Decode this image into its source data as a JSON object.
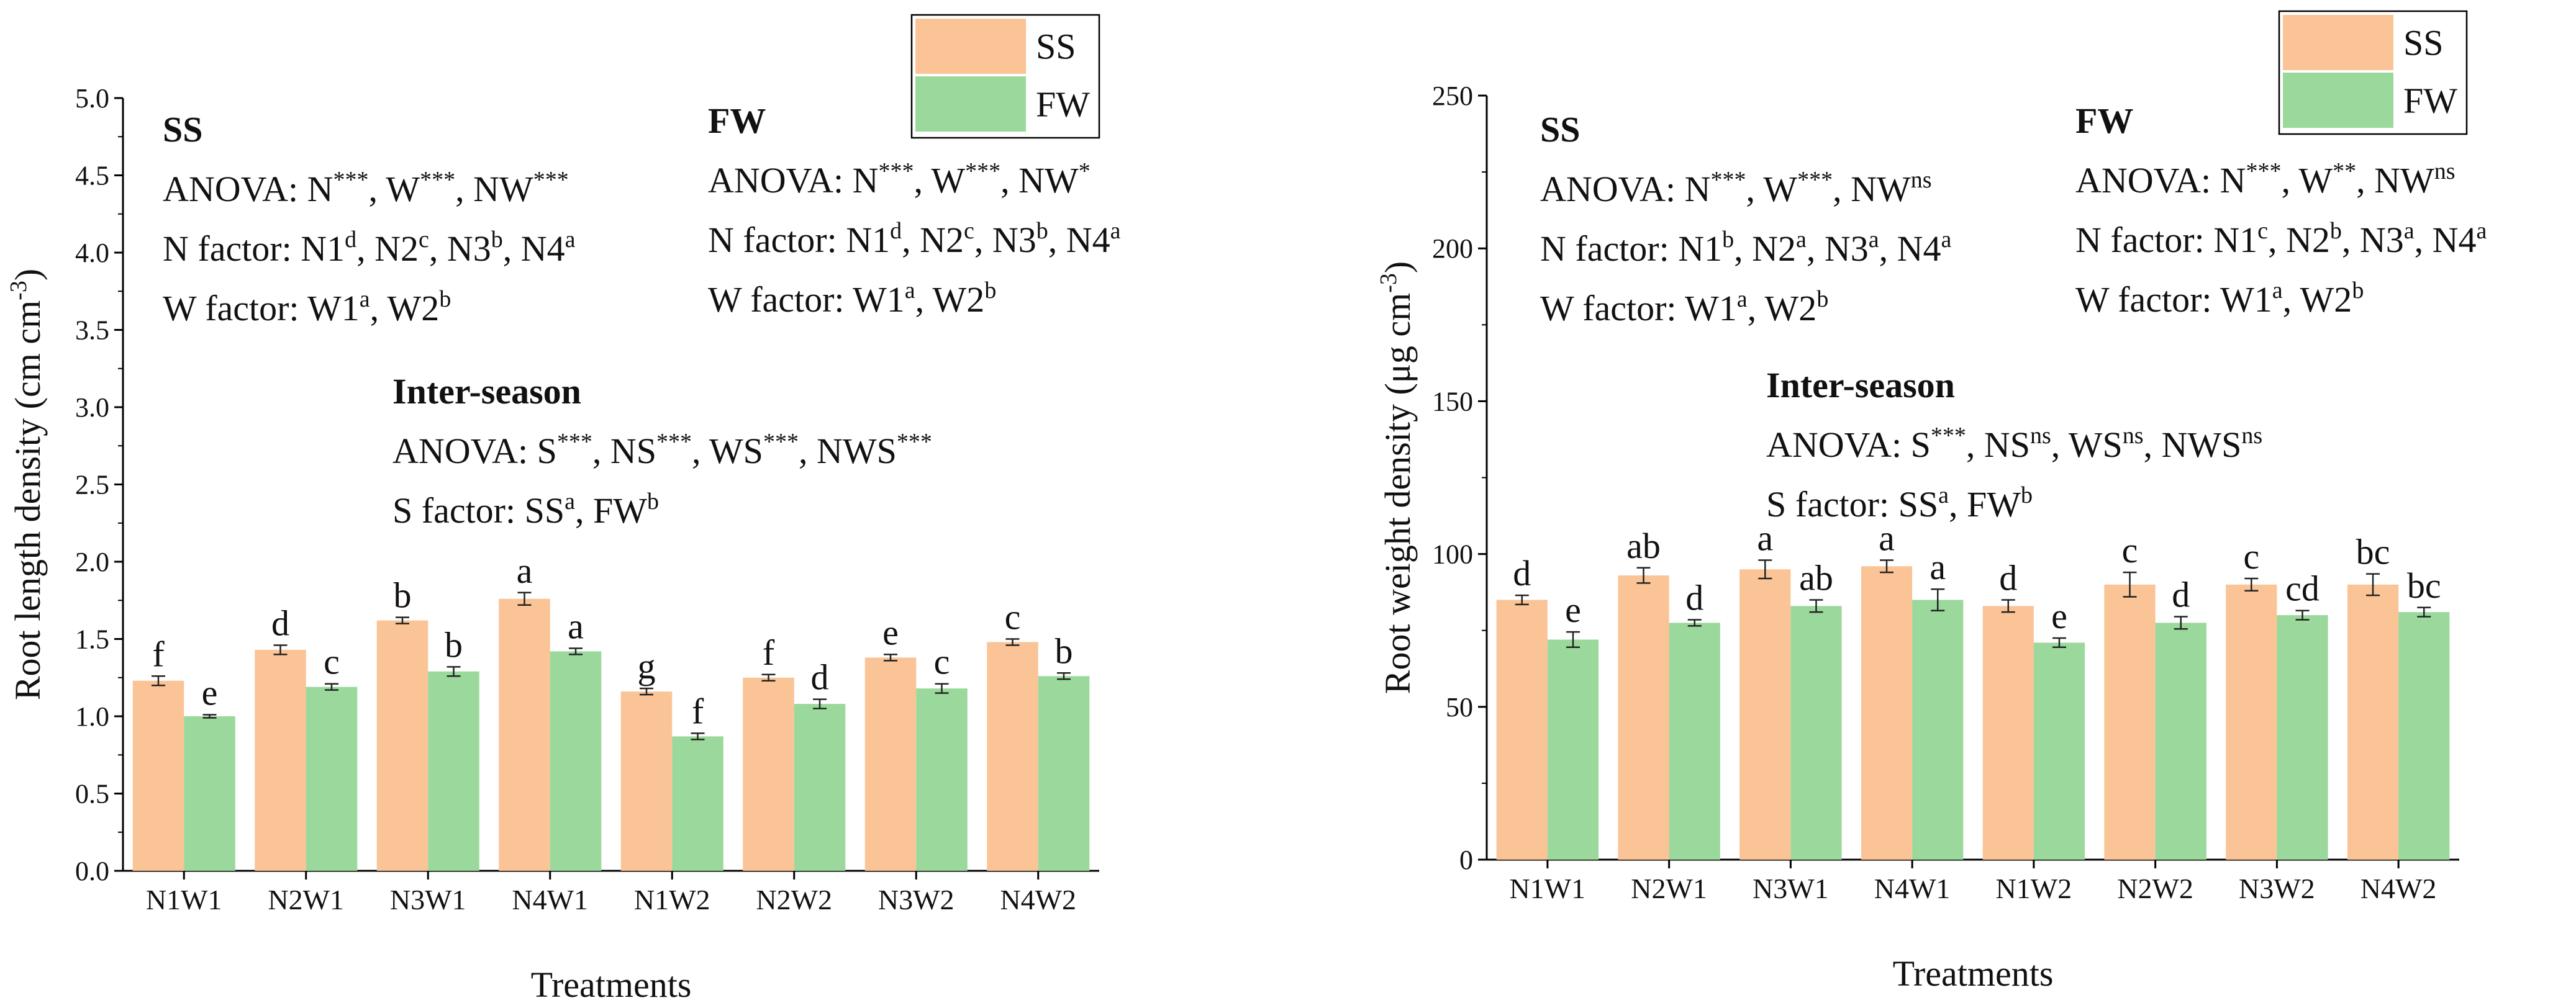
{
  "colors": {
    "ss": "#FAC496",
    "fw": "#9BD89B",
    "axis": "#000000",
    "errbar": "#222222"
  },
  "chart_data": [
    {
      "type": "bar",
      "ylabel": "Root length density (cm cm",
      "ylabel_sup": "-3",
      "ylabel_close": ")",
      "xlabel": "Treatments",
      "ylim": [
        0,
        5.0
      ],
      "yticks": [
        "0.0",
        "0.5",
        "1.0",
        "1.5",
        "2.0",
        "2.5",
        "3.0",
        "3.5",
        "4.0",
        "4.5",
        "5.0"
      ],
      "categories": [
        "N1W1",
        "N2W1",
        "N3W1",
        "N4W1",
        "N1W2",
        "N2W2",
        "N3W2",
        "N4W2"
      ],
      "legend": [
        "SS",
        "FW"
      ],
      "legend_position": "top-right",
      "series": [
        {
          "name": "SS",
          "values": [
            1.23,
            1.43,
            1.62,
            1.76,
            1.16,
            1.25,
            1.38,
            1.48
          ],
          "errors": [
            0.03,
            0.03,
            0.02,
            0.04,
            0.02,
            0.02,
            0.02,
            0.02
          ],
          "letters": [
            "f",
            "d",
            "b",
            "a",
            "g",
            "f",
            "e",
            "c"
          ]
        },
        {
          "name": "FW",
          "values": [
            1.0,
            1.19,
            1.29,
            1.42,
            0.87,
            1.08,
            1.18,
            1.26
          ],
          "errors": [
            0.01,
            0.02,
            0.03,
            0.02,
            0.02,
            0.03,
            0.03,
            0.02
          ],
          "letters": [
            "e",
            "c",
            "b",
            "a",
            "f",
            "d",
            "c",
            "b"
          ]
        }
      ],
      "annotations": {
        "ss": {
          "title": "SS",
          "lines": [
            [
              {
                "t": "ANOVA: N"
              },
              {
                "s": "***"
              },
              {
                "t": ", W"
              },
              {
                "s": "***"
              },
              {
                "t": ", NW"
              },
              {
                "s": "***"
              }
            ],
            [
              {
                "t": "N factor: N1"
              },
              {
                "s": "d"
              },
              {
                "t": ", N2"
              },
              {
                "s": "c"
              },
              {
                "t": ", N3"
              },
              {
                "s": "b"
              },
              {
                "t": ", N4"
              },
              {
                "s": "a"
              }
            ],
            [
              {
                "t": "W factor: W1"
              },
              {
                "s": "a"
              },
              {
                "t": ", W2"
              },
              {
                "s": "b"
              }
            ]
          ]
        },
        "fw": {
          "title": "FW",
          "lines": [
            [
              {
                "t": "ANOVA: N"
              },
              {
                "s": "***"
              },
              {
                "t": ", W"
              },
              {
                "s": "***"
              },
              {
                "t": ", NW"
              },
              {
                "s": "*"
              }
            ],
            [
              {
                "t": "N factor: N1"
              },
              {
                "s": "d"
              },
              {
                "t": ", N2"
              },
              {
                "s": "c"
              },
              {
                "t": ", N3"
              },
              {
                "s": "b"
              },
              {
                "t": ", N4"
              },
              {
                "s": "a"
              }
            ],
            [
              {
                "t": "W factor: W1"
              },
              {
                "s": "a"
              },
              {
                "t": ", W2"
              },
              {
                "s": "b"
              }
            ]
          ]
        },
        "inter": {
          "title": "Inter-season",
          "lines": [
            [
              {
                "t": "ANOVA: S"
              },
              {
                "s": "***"
              },
              {
                "t": ", NS"
              },
              {
                "s": "***"
              },
              {
                "t": ", WS"
              },
              {
                "s": "***"
              },
              {
                "t": ", NWS"
              },
              {
                "s": "***"
              }
            ],
            [
              {
                "t": "S factor: SS"
              },
              {
                "s": "a"
              },
              {
                "t": ", FW"
              },
              {
                "s": "b"
              }
            ]
          ]
        }
      }
    },
    {
      "type": "bar",
      "ylabel": "Root weight density (μg cm",
      "ylabel_sup": "-3",
      "ylabel_close": ")",
      "xlabel": "Treatments",
      "ylim": [
        0,
        250
      ],
      "yticks": [
        "0",
        "50",
        "100",
        "150",
        "200",
        "250"
      ],
      "categories": [
        "N1W1",
        "N2W1",
        "N3W1",
        "N4W1",
        "N1W2",
        "N2W2",
        "N3W2",
        "N4W2"
      ],
      "legend": [
        "SS",
        "FW"
      ],
      "legend_position": "top-right",
      "series": [
        {
          "name": "SS",
          "values": [
            85,
            93,
            95,
            96,
            83,
            90,
            90,
            90
          ],
          "errors": [
            1.5,
            2.5,
            3,
            2,
            2,
            4,
            2,
            3.5
          ],
          "letters": [
            "d",
            "ab",
            "a",
            "a",
            "d",
            "c",
            "c",
            "bc"
          ]
        },
        {
          "name": "FW",
          "values": [
            72,
            77.5,
            83,
            85,
            71,
            77.5,
            80,
            81
          ],
          "errors": [
            2.5,
            1,
            2,
            3.5,
            1.5,
            2,
            1.5,
            1.5
          ],
          "letters": [
            "e",
            "d",
            "ab",
            "a",
            "e",
            "d",
            "cd",
            "bc"
          ]
        }
      ],
      "annotations": {
        "ss": {
          "title": "SS",
          "lines": [
            [
              {
                "t": "ANOVA: N"
              },
              {
                "s": "***"
              },
              {
                "t": ", W"
              },
              {
                "s": "***"
              },
              {
                "t": ", NW"
              },
              {
                "s": "ns"
              }
            ],
            [
              {
                "t": "N factor: N1"
              },
              {
                "s": "b"
              },
              {
                "t": ", N2"
              },
              {
                "s": "a"
              },
              {
                "t": ", N3"
              },
              {
                "s": "a"
              },
              {
                "t": ", N4"
              },
              {
                "s": "a"
              }
            ],
            [
              {
                "t": "W factor: W1"
              },
              {
                "s": "a"
              },
              {
                "t": ", W2"
              },
              {
                "s": "b"
              }
            ]
          ]
        },
        "fw": {
          "title": "FW",
          "lines": [
            [
              {
                "t": "ANOVA: N"
              },
              {
                "s": "***"
              },
              {
                "t": ", W"
              },
              {
                "s": "**"
              },
              {
                "t": ", NW"
              },
              {
                "s": "ns"
              }
            ],
            [
              {
                "t": "N factor: N1"
              },
              {
                "s": "c"
              },
              {
                "t": ", N2"
              },
              {
                "s": "b"
              },
              {
                "t": ", N3"
              },
              {
                "s": "a"
              },
              {
                "t": ", N4"
              },
              {
                "s": "a"
              }
            ],
            [
              {
                "t": "W factor: W1"
              },
              {
                "s": "a"
              },
              {
                "t": ", W2"
              },
              {
                "s": "b"
              }
            ]
          ]
        },
        "inter": {
          "title": "Inter-season",
          "lines": [
            [
              {
                "t": "ANOVA: S"
              },
              {
                "s": "***"
              },
              {
                "t": ", NS"
              },
              {
                "s": "ns"
              },
              {
                "t": ", WS"
              },
              {
                "s": "ns"
              },
              {
                "t": ", NWS"
              },
              {
                "s": "ns"
              }
            ],
            [
              {
                "t": "S factor: SS"
              },
              {
                "s": "a"
              },
              {
                "t": ", FW"
              },
              {
                "s": "b"
              }
            ]
          ]
        }
      }
    }
  ]
}
